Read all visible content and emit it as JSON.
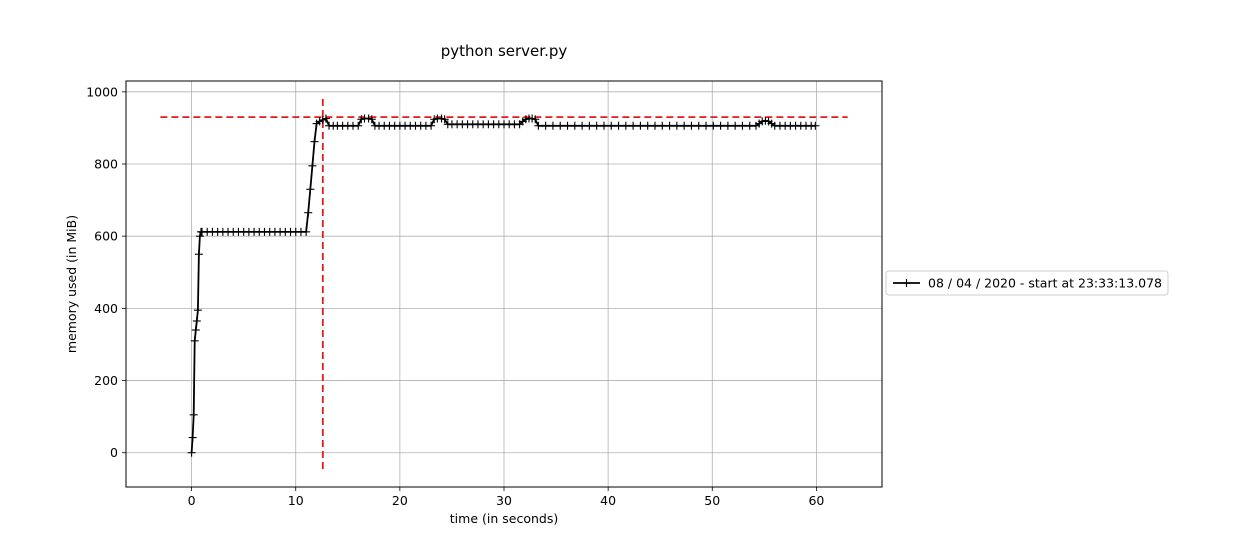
{
  "chart_data": {
    "type": "line",
    "title": "python server.py",
    "xlabel": "time (in seconds)",
    "ylabel": "memory used (in MiB)",
    "xlim": [
      -6.3,
      66.3
    ],
    "ylim": [
      -95,
      1030
    ],
    "xticks": [
      0,
      10,
      20,
      30,
      40,
      50,
      60
    ],
    "yticks": [
      0,
      200,
      400,
      600,
      800,
      1000
    ],
    "grid": true,
    "legend_position": "outside-right",
    "series": [
      {
        "name": "08 / 04 / 2020 - start at 23:33:13.078",
        "color": "#000000",
        "marker": "+",
        "x": [
          0.0,
          0.1,
          0.2,
          0.3,
          0.4,
          0.5,
          0.6,
          0.7,
          0.8,
          0.9,
          1.0,
          1.5,
          2.0,
          2.5,
          3.0,
          3.5,
          4.0,
          4.5,
          5.0,
          5.5,
          6.0,
          6.5,
          7.0,
          7.5,
          8.0,
          8.5,
          9.0,
          9.5,
          10.0,
          10.5,
          11.0,
          11.2,
          11.4,
          11.6,
          11.8,
          12.0,
          12.3,
          12.6,
          12.9,
          13.2,
          13.6,
          14.0,
          14.5,
          15.0,
          15.5,
          16.0,
          16.3,
          16.6,
          17.0,
          17.3,
          17.6,
          18.0,
          18.5,
          19.0,
          19.5,
          20.0,
          20.5,
          21.0,
          21.5,
          22.0,
          22.5,
          23.0,
          23.3,
          23.6,
          24.0,
          24.3,
          24.6,
          25.0,
          25.5,
          26.0,
          26.5,
          27.0,
          27.5,
          28.0,
          28.5,
          29.0,
          29.5,
          30.0,
          30.5,
          31.0,
          31.5,
          31.8,
          32.1,
          32.4,
          32.7,
          33.0,
          33.3,
          34.0,
          34.7,
          35.4,
          36.1,
          36.8,
          37.5,
          38.2,
          38.9,
          39.6,
          40.3,
          41.0,
          41.7,
          42.4,
          43.1,
          43.8,
          44.5,
          45.2,
          45.9,
          46.6,
          47.3,
          48.0,
          48.7,
          49.4,
          50.1,
          50.8,
          51.5,
          52.2,
          52.9,
          53.6,
          54.2,
          54.5,
          54.8,
          55.1,
          55.4,
          55.7,
          56.0,
          56.5,
          57.0,
          57.5,
          58.0,
          58.5,
          59.0,
          59.5,
          59.9
        ],
        "y": [
          0,
          42,
          105,
          310,
          340,
          365,
          395,
          550,
          600,
          612,
          612,
          612,
          612,
          612,
          612,
          612,
          612,
          612,
          612,
          612,
          612,
          612,
          612,
          612,
          612,
          612,
          612,
          612,
          612,
          612,
          612,
          665,
          730,
          795,
          862,
          912,
          918,
          922,
          926,
          906,
          906,
          906,
          906,
          906,
          906,
          906,
          924,
          926,
          926,
          924,
          906,
          906,
          906,
          906,
          906,
          906,
          906,
          906,
          906,
          906,
          906,
          906,
          924,
          926,
          926,
          924,
          910,
          910,
          910,
          910,
          910,
          910,
          910,
          910,
          910,
          910,
          910,
          910,
          910,
          910,
          910,
          918,
          924,
          926,
          926,
          924,
          906,
          906,
          906,
          906,
          906,
          906,
          906,
          906,
          906,
          906,
          906,
          906,
          906,
          906,
          906,
          906,
          906,
          906,
          906,
          906,
          906,
          906,
          906,
          906,
          906,
          906,
          906,
          906,
          906,
          906,
          906,
          912,
          918,
          920,
          918,
          912,
          906,
          906,
          906,
          906,
          906,
          906,
          906,
          906,
          906
        ]
      }
    ],
    "reference_lines": [
      {
        "orientation": "horizontal",
        "value": 930,
        "from": -3.0,
        "to": 63.0,
        "color": "#e41a1c",
        "style": "dashed"
      },
      {
        "orientation": "vertical",
        "value": 12.6,
        "from": -45,
        "to": 980,
        "color": "#e41a1c",
        "style": "dashed"
      }
    ]
  }
}
